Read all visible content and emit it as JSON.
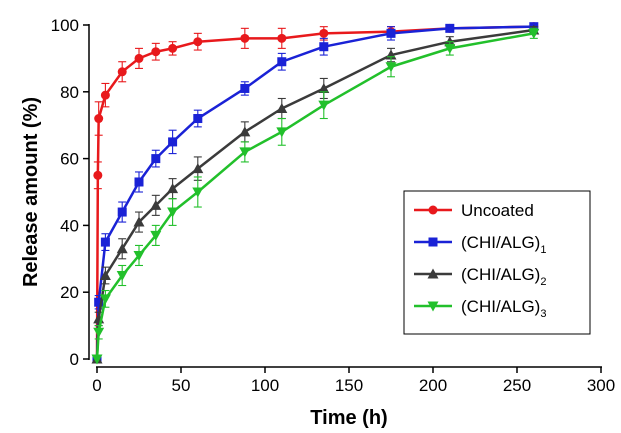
{
  "chart_data": {
    "type": "line",
    "xlabel": "Time (h)",
    "ylabel": "Release amount (%)",
    "xlim": [
      0,
      300
    ],
    "ylim": [
      0,
      100
    ],
    "xticks": [
      0,
      50,
      100,
      150,
      200,
      250,
      300
    ],
    "yticks": [
      0,
      20,
      40,
      60,
      80,
      100
    ],
    "grid": false,
    "legend_position": "bottom-right",
    "error_bars": true,
    "series": [
      {
        "name": "Uncoated",
        "name_base": "Uncoated",
        "name_sub": "",
        "color": "#e8191c",
        "marker": "circle",
        "x": [
          0,
          0.5,
          1,
          5,
          15,
          25,
          35,
          45,
          60,
          88,
          110,
          135,
          175,
          210,
          260
        ],
        "y": [
          0,
          55,
          72,
          79,
          86,
          90,
          92,
          93,
          95,
          96,
          96,
          97.5,
          98,
          99,
          99.5
        ],
        "err": [
          0,
          4,
          5,
          3.5,
          3,
          3,
          2.5,
          2,
          2.5,
          3,
          3,
          2,
          1.5,
          1,
          1
        ]
      },
      {
        "name": "(CHI/ALG)1",
        "name_base": "(CHI/ALG)",
        "name_sub": "1",
        "color": "#1a22d6",
        "marker": "square",
        "x": [
          0,
          1,
          5,
          15,
          25,
          35,
          45,
          60,
          88,
          110,
          135,
          175,
          210,
          260
        ],
        "y": [
          0,
          17,
          35,
          44,
          53,
          60,
          65,
          72,
          81,
          89,
          93.5,
          97.5,
          99,
          99.5
        ],
        "err": [
          0,
          2,
          2.5,
          3,
          3,
          2.5,
          3.5,
          2.5,
          2,
          2.5,
          2.5,
          2,
          1,
          1
        ]
      },
      {
        "name": "(CHI/ALG)2",
        "name_base": "(CHI/ALG)",
        "name_sub": "2",
        "color": "#3b3b3b",
        "marker": "triangle-up",
        "x": [
          0,
          1,
          5,
          15,
          25,
          35,
          45,
          60,
          88,
          110,
          135,
          175,
          210,
          260
        ],
        "y": [
          0,
          12,
          25,
          33,
          41,
          46,
          51,
          57,
          68,
          75,
          81,
          91,
          95,
          98.5
        ],
        "err": [
          0,
          2,
          2.5,
          3,
          3,
          3,
          3,
          3.5,
          3,
          3,
          3,
          2,
          1.5,
          1
        ]
      },
      {
        "name": "(CHI/ALG)3",
        "name_base": "(CHI/ALG)",
        "name_sub": "3",
        "color": "#22c02b",
        "marker": "triangle-down",
        "x": [
          0,
          1,
          5,
          15,
          25,
          35,
          45,
          60,
          88,
          110,
          135,
          175,
          210,
          260
        ],
        "y": [
          0,
          8,
          18,
          25,
          31,
          37,
          44,
          50,
          62,
          68,
          76,
          87.5,
          93,
          97.5
        ],
        "err": [
          0,
          2,
          2.5,
          3,
          3,
          3,
          4,
          4.5,
          3,
          4,
          4,
          3,
          2,
          1.5
        ]
      }
    ]
  }
}
